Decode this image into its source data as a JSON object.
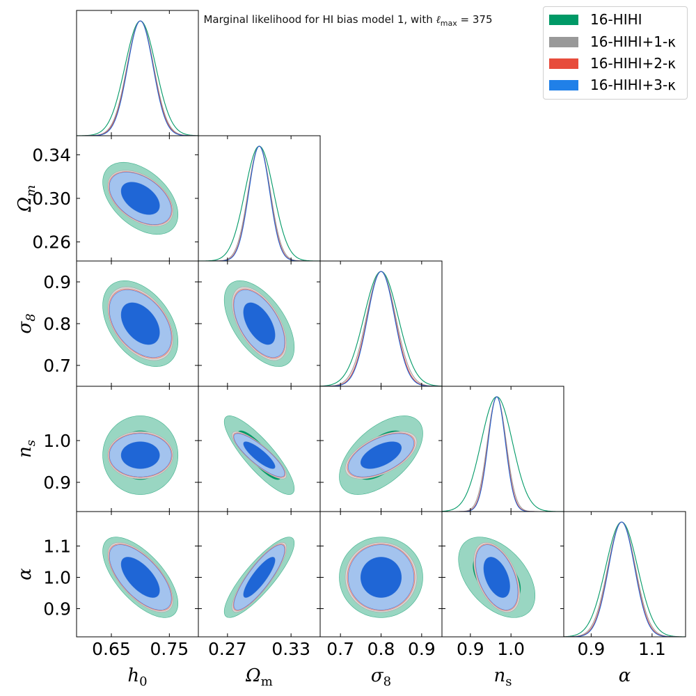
{
  "title": {
    "prefix": "Marginal likelihood for HI bias model 1, with ",
    "ell": "ℓ",
    "sub": "max",
    "value": " = 375"
  },
  "legend": [
    {
      "label": "16-HIHI",
      "color": "#009966"
    },
    {
      "label": "16-HIHI+1-κ",
      "color": "#999999"
    },
    {
      "label": "16-HIHI+2-κ",
      "color": "#e74c3c"
    },
    {
      "label": "16-HIHI+3-κ",
      "color": "#2080e8"
    }
  ],
  "chart_data": {
    "type": "triangle-corner",
    "parameters": [
      {
        "key": "h0",
        "label_main": "h",
        "label_sub": "0",
        "range": [
          0.59,
          0.8
        ],
        "ticks": [
          0.65,
          0.75
        ],
        "tick_labels": [
          "0.65",
          "0.75"
        ]
      },
      {
        "key": "Om",
        "label_main": "Ω",
        "label_sub": "m",
        "range": [
          0.2425,
          0.3575
        ],
        "ticks": [
          0.26,
          0.3,
          0.34
        ],
        "tick_labels": [
          "0.26",
          "0.30",
          "0.34"
        ],
        "xticks": [
          0.27,
          0.33
        ],
        "xtick_labels": [
          "0.27",
          "0.33"
        ]
      },
      {
        "key": "s8",
        "label_main": "σ",
        "label_sub": "8",
        "range": [
          0.65,
          0.95
        ],
        "ticks": [
          0.7,
          0.8,
          0.9
        ],
        "tick_labels": [
          "0.7",
          "0.8",
          "0.9"
        ]
      },
      {
        "key": "ns",
        "label_main": "n",
        "label_sub": "s",
        "range": [
          0.83,
          1.13
        ],
        "ticks": [
          0.9,
          1.0
        ],
        "tick_labels": [
          "0.9",
          "1.0"
        ]
      },
      {
        "key": "alpha",
        "label_main": "α",
        "label_sub": "",
        "range": [
          0.81,
          1.21
        ],
        "ticks": [
          0.9,
          1.0,
          1.1
        ],
        "tick_labels": [
          "0.9",
          "1.0",
          "1.1"
        ],
        "xticks": [
          0.9,
          1.1
        ],
        "xtick_labels": [
          "0.9",
          "1.1"
        ]
      }
    ],
    "means": {
      "h0": 0.7,
      "Om": 0.3,
      "s8": 0.8,
      "ns": 0.965,
      "alpha": 1.0
    },
    "series": [
      {
        "name": "16-HIHI",
        "fill95": "#99d6c2",
        "fill68": "#009966",
        "sigma": {
          "h0": 0.0265,
          "Om": 0.0135,
          "s8": 0.042,
          "ns": 0.0385,
          "alpha": 0.0525
        }
      },
      {
        "name": "16-HIHI+1-κ",
        "fill95": "#d6d6d6",
        "fill68": "#9a9a9a",
        "sigma": {
          "h0": 0.023,
          "Om": 0.0105,
          "s8": 0.036,
          "ns": 0.0232,
          "alpha": 0.0455
        }
      },
      {
        "name": "16-HIHI+2-κ",
        "fill95": "#f3b2aa",
        "fill68": "#e74c3c",
        "sigma": {
          "h0": 0.0223,
          "Om": 0.01,
          "s8": 0.034,
          "ns": 0.0218,
          "alpha": 0.0435
        }
      },
      {
        "name": "16-HIHI+3-κ",
        "fill95": "#a3c3ee",
        "fill68": "#1f66d6",
        "sigma": {
          "h0": 0.0218,
          "Om": 0.0098,
          "s8": 0.033,
          "ns": 0.0212,
          "alpha": 0.0425
        }
      }
    ],
    "correlations": {
      "h0|Om": -0.45,
      "h0|s8": -0.42,
      "Om|s8": -0.55,
      "h0|ns": 0.0,
      "Om|ns": -0.85,
      "s8|ns": 0.55,
      "h0|alpha": -0.65,
      "Om|alpha": 0.85,
      "s8|alpha": 0.0,
      "ns|alpha": -0.45
    }
  }
}
